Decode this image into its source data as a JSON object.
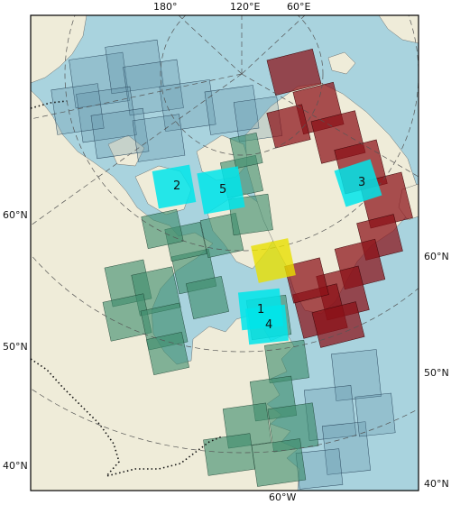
{
  "map": {
    "top_labels": [
      "180°",
      "120°E",
      "60°E"
    ],
    "left_labels": [
      "60°N",
      "50°N",
      "40°N"
    ],
    "right_labels": [
      "60°N",
      "50°N",
      "40°N"
    ],
    "bottom_labels": [
      "60°W"
    ],
    "colors": {
      "ocean": "#a9d3de",
      "land": "#efecd9",
      "green_footprints": "#3e8c6c",
      "red_footprints": "#8b0f16",
      "blue_footprints": "#5e8fa6",
      "cyan_regions": "#00e5ea",
      "yellow_region": "#e8e000"
    },
    "regions": [
      "1",
      "2",
      "3",
      "4",
      "5"
    ]
  }
}
